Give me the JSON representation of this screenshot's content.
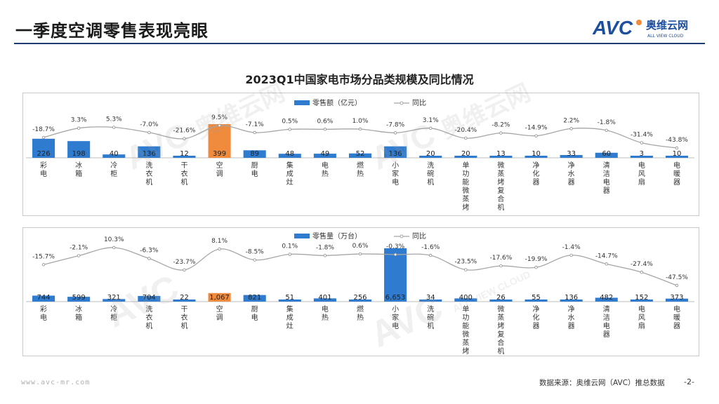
{
  "header": {
    "title": "一季度空调零售表现亮眼",
    "logo_text": "AVC",
    "logo_cn": "奥维云网",
    "logo_en": "ALL VIEW CLOUD"
  },
  "footer": {
    "source": "数据来源：奥维云网（AVC）推总数据",
    "page": "-2-",
    "website": "www.avc-mr.com"
  },
  "watermark": {
    "logo": "AVC",
    "cn": "奥维云网",
    "en": "ALL VIEW CLOUD"
  },
  "colors": {
    "bar": "#2e7bcf",
    "highlight": "#f08a3c",
    "line": "#a6a6a6",
    "accent": "#1f3b75"
  },
  "chart_data": [
    {
      "type": "bar",
      "title": "2023Q1中国家电市场分品类规模及同比情况",
      "legend": [
        "零售额（亿元）",
        "同比"
      ],
      "categories": [
        "彩电",
        "冰箱",
        "冷柜",
        "洗衣机",
        "干衣机",
        "空调",
        "厨电",
        "集成灶",
        "电热",
        "燃热",
        "小家电",
        "洗碗机",
        "单功能微蒸烤",
        "微蒸烤复合机",
        "净化器",
        "净水器",
        "清洁电器",
        "电风扇",
        "电暖器"
      ],
      "values": [
        226,
        198,
        40,
        136,
        12,
        399,
        89,
        48,
        49,
        52,
        136,
        20,
        20,
        13,
        10,
        33,
        60,
        3,
        10
      ],
      "value_labels": [
        "226",
        "198",
        "40",
        "136",
        "12",
        "399",
        "89",
        "48",
        "49",
        "52",
        "136",
        "20",
        "20",
        "13",
        "10",
        "33",
        "60",
        "3",
        "10"
      ],
      "yoy": [
        -18.7,
        3.3,
        5.3,
        -7.0,
        -21.6,
        9.5,
        -7.1,
        0.5,
        0.6,
        1.0,
        -7.8,
        3.1,
        -20.4,
        -8.2,
        -14.9,
        2.2,
        -1.8,
        -31.4,
        -43.8
      ],
      "yoy_labels": [
        "-18.7%",
        "3.3%",
        "5.3%",
        "-7.0%",
        "-21.6%",
        "9.5%",
        "-7.1%",
        "0.5%",
        "0.6%",
        "1.0%",
        "-7.8%",
        "3.1%",
        "-20.4%",
        "-8.2%",
        "-14.9%",
        "2.2%",
        "-1.8%",
        "-31.4%",
        "-43.8%"
      ],
      "highlight_index": 5,
      "bar_max": 399
    },
    {
      "type": "bar",
      "legend": [
        "零售量（万台）",
        "同比"
      ],
      "categories": [
        "彩电",
        "冰箱",
        "冷柜",
        "洗衣机",
        "干衣机",
        "空调",
        "厨电",
        "集成灶",
        "电热",
        "燃热",
        "小家电",
        "洗碗机",
        "单功能微蒸烤",
        "微蒸烤复合机",
        "净化器",
        "净水器",
        "清洁电器",
        "电风扇",
        "电暖器"
      ],
      "values": [
        744,
        599,
        321,
        704,
        22,
        1067,
        821,
        51,
        401,
        256,
        6653,
        34,
        400,
        26,
        55,
        136,
        482,
        152,
        373
      ],
      "value_labels": [
        "744",
        "599",
        "321",
        "704",
        "22",
        "1,067",
        "821",
        "51",
        "401",
        "256",
        "6,653",
        "34",
        "400",
        "26",
        "55",
        "136",
        "482",
        "152",
        "373"
      ],
      "yoy": [
        -15.7,
        -2.1,
        10.3,
        -6.3,
        -23.7,
        8.1,
        -8.5,
        0.1,
        -1.8,
        0.6,
        -0.3,
        -1.6,
        -23.5,
        -17.6,
        -19.9,
        -1.4,
        -14.7,
        -27.4,
        -47.5
      ],
      "yoy_labels": [
        "-15.7%",
        "-2.1%",
        "10.3%",
        "-6.3%",
        "-23.7%",
        "8.1%",
        "-8.5%",
        "0.1%",
        "-1.8%",
        "0.6%",
        "-0.3%",
        "-1.6%",
        "-23.5%",
        "-17.6%",
        "-19.9%",
        "-1.4%",
        "-14.7%",
        "-27.4%",
        "-47.5%"
      ],
      "highlight_index": 5,
      "bar_max": 6653
    }
  ]
}
